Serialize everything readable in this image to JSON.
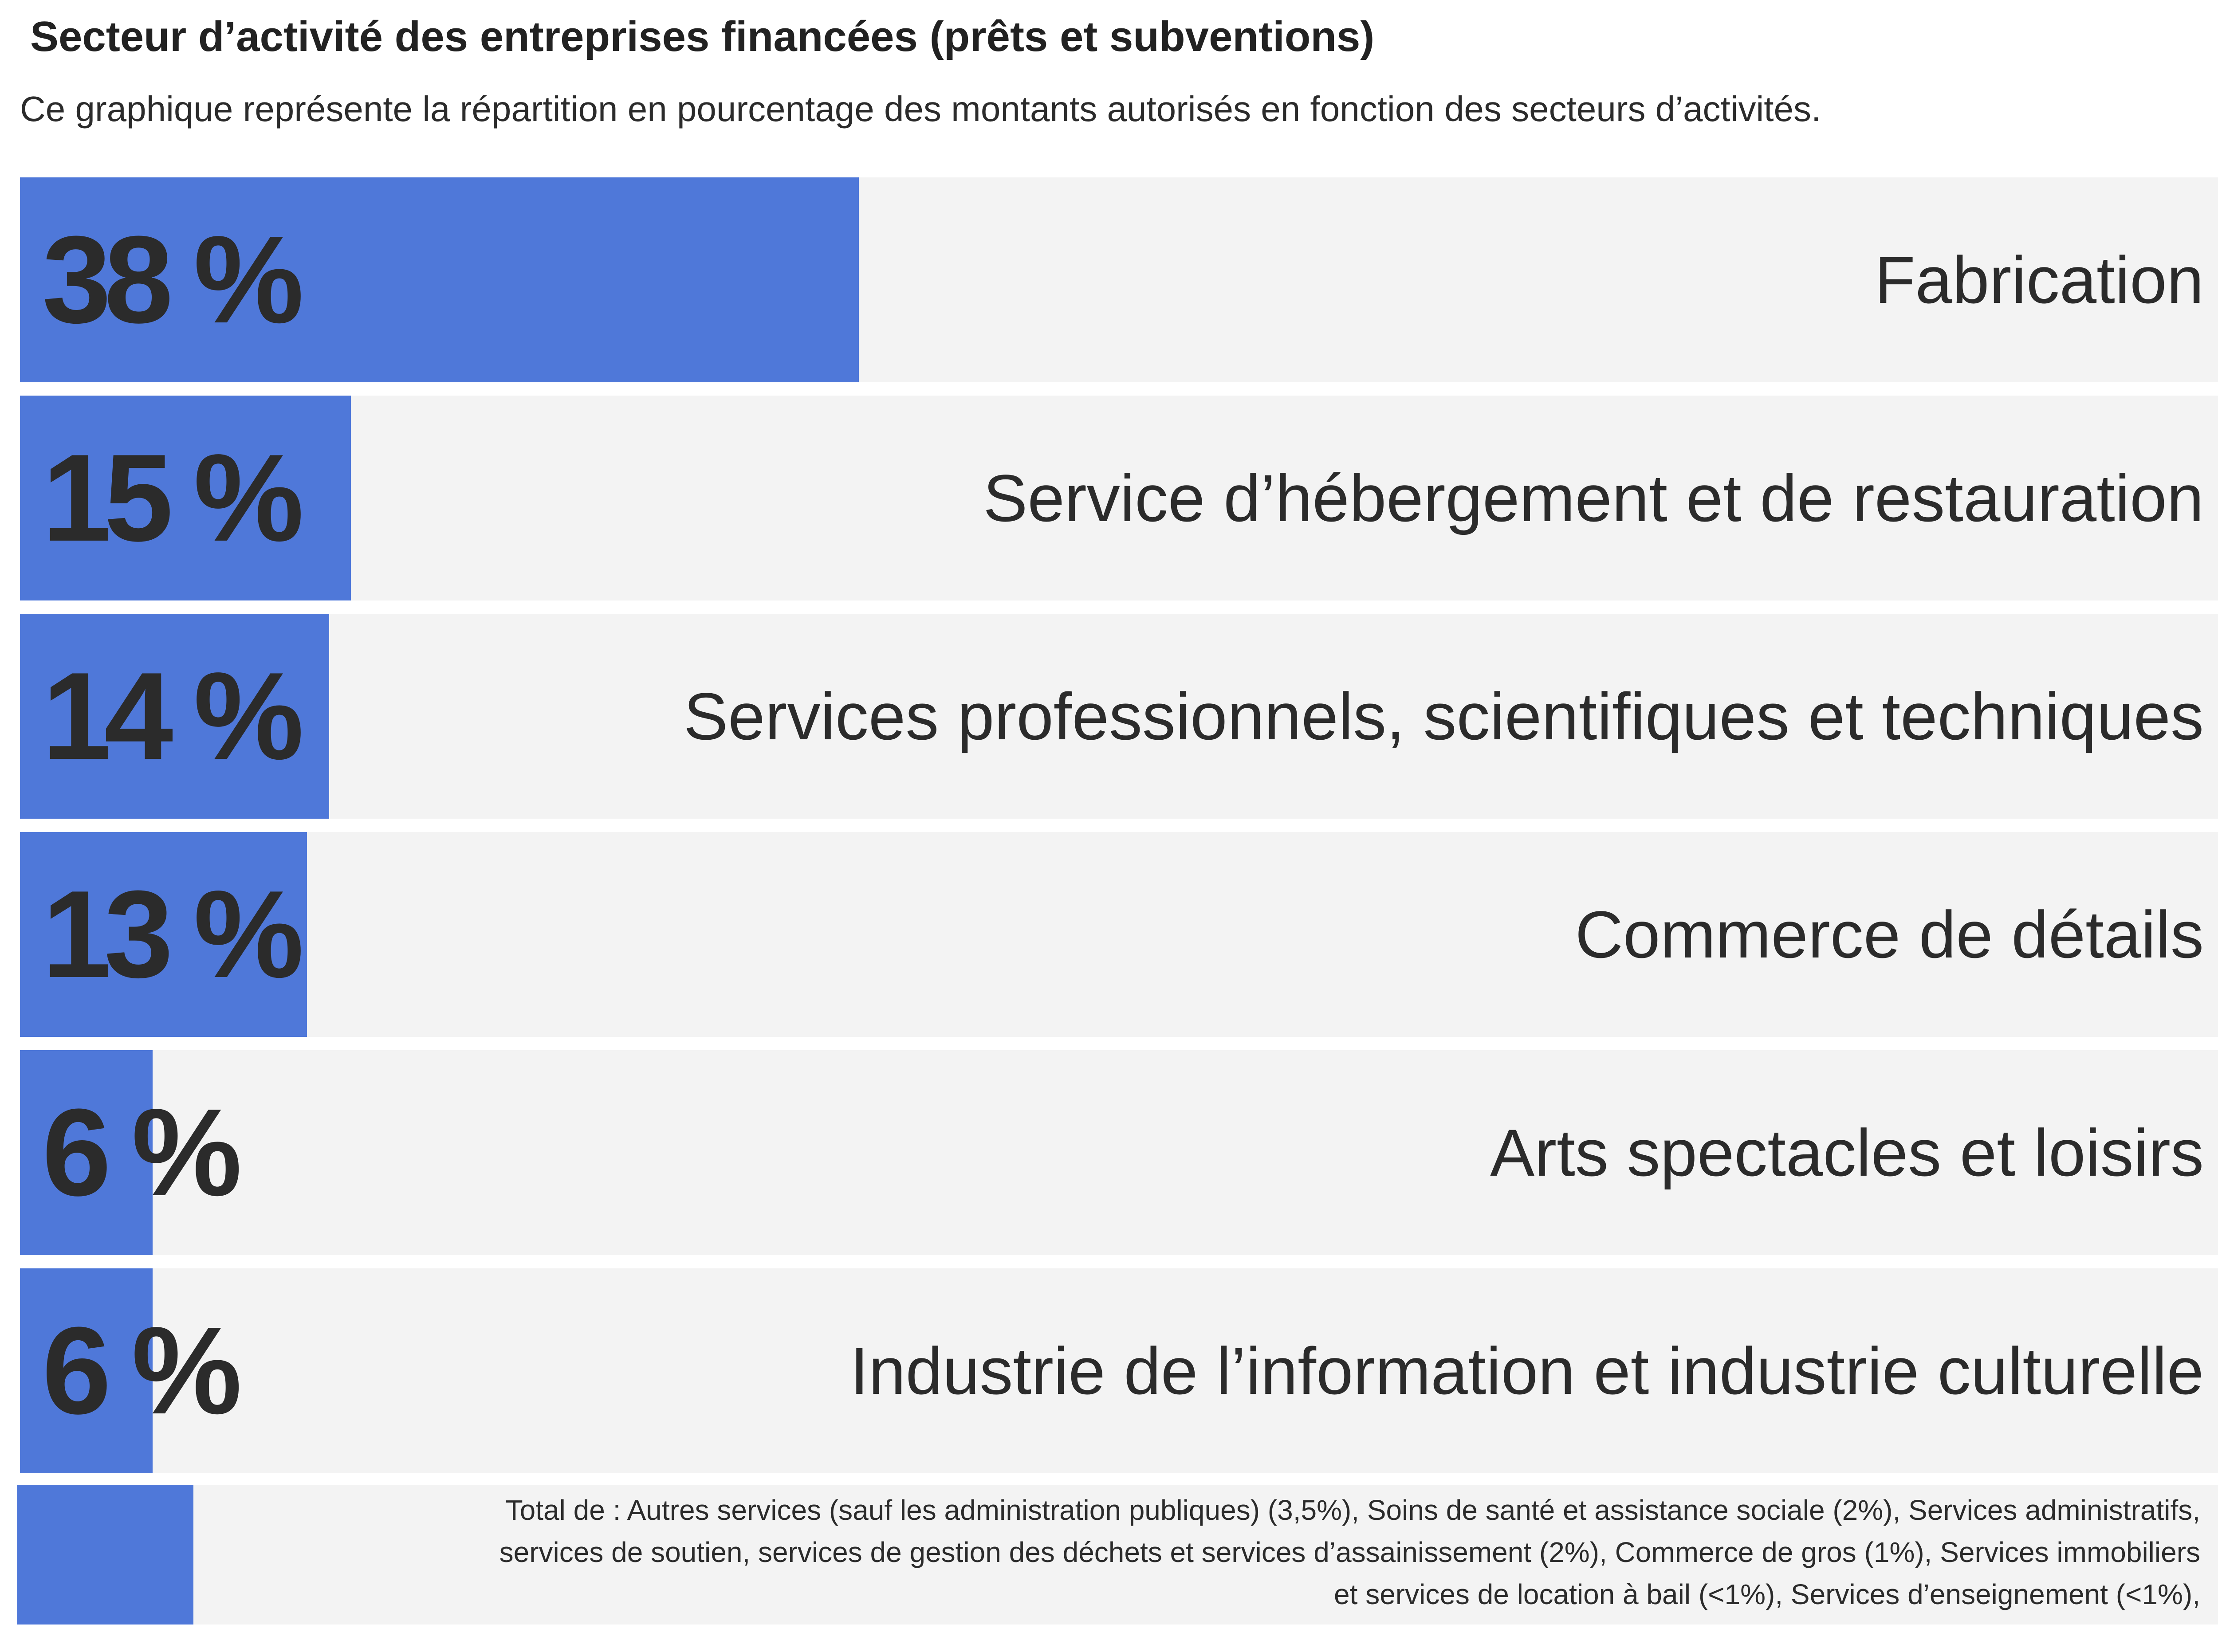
{
  "title": "Secteur d’activité des entreprises financées (prêts et subventions)",
  "subtitle": "Ce graphique représente la répartition en pourcentage des montants autorisés en fonction des secteurs d’activités.",
  "colors": {
    "bar": "#4f78d9",
    "track": "#f3f3f3",
    "text": "#2b2b2b"
  },
  "chart_data": {
    "type": "bar",
    "orientation": "horizontal",
    "categories": [
      "Fabrication",
      "Service d’hébergement et de restauration",
      "Services professionnels, scientifiques et techniques",
      "Commerce de détails",
      "Arts spectacles et loisirs",
      "Industrie de l’information et industrie culturelle"
    ],
    "values": [
      38,
      15,
      14,
      13,
      6,
      6
    ],
    "value_labels": [
      "38 %",
      "15 %",
      "14 %",
      "13 %",
      "6 %",
      "6 %"
    ],
    "unit": "%",
    "xlim": [
      0,
      100
    ]
  },
  "other": {
    "value": 8,
    "note": "Total de : Autres services (sauf les administration publiques) (3,5%), Soins de santé et assistance sociale (2%), Services administratifs, services de soutien, services de gestion des déchets et services d’assainissement (2%), Commerce de gros (1%),  Services immobiliers et services de location à bail (<1%), Services d’enseignement (<1%),"
  }
}
